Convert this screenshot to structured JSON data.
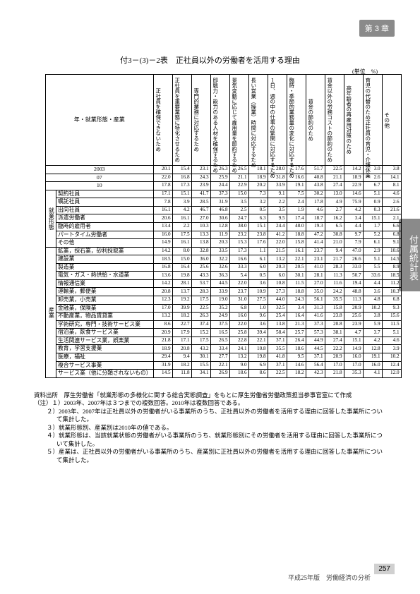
{
  "chapter_tag": "第 3 章",
  "side_tab": "付属統計表",
  "title": "付3－(3)－2表　正社員以外の労働者を活用する理由",
  "unit_label": "(単位　%)",
  "corner_head": "年・就業形態・産業",
  "col_heads": [
    "正社員を確保できないため",
    "正社員を重要業務に特化させるため",
    "専門的業務に対応するため",
    "即戦力・能力のある人材を確保するため",
    "景気変動に応じて雇用量を節約するため",
    "長い営業（操業）時間に対応するため",
    "１日、週の中の仕事の繁閑に対応するため",
    "臨時・季節的業務量の変化に対応するため",
    "賃金の節約のため",
    "賃金以外の労務コストの節約のため",
    "高年齢者の再雇用対策のため",
    "育児の代替のため正社員の育児・介護休業",
    "その他"
  ],
  "year_rows": [
    {
      "label": "2003",
      "v": [
        20.1,
        15.4,
        23.1,
        26.3,
        26.5,
        18.1,
        28.0,
        17.6,
        51.7,
        22.5,
        14.2,
        3.0,
        3.8
      ]
    },
    {
      "label": "07",
      "v": [
        22.0,
        16.8,
        24.3,
        25.9,
        21.1,
        18.9,
        31.8,
        16.6,
        40.8,
        21.1,
        18.9,
        2.6,
        14.1
      ]
    },
    {
      "label": "10",
      "v": [
        17.8,
        17.3,
        23.9,
        24.4,
        22.9,
        20.2,
        33.9,
        19.1,
        43.8,
        27.4,
        22.9,
        6.7,
        8.1
      ]
    }
  ],
  "emp_rows": [
    {
      "label": "契約社員",
      "v": [
        17.1,
        15.1,
        41.7,
        37.3,
        15.0,
        7.3,
        9.1,
        7.5,
        30.2,
        13.0,
        14.6,
        5.1,
        4.6
      ]
    },
    {
      "label": "嘱託社員",
      "v": [
        7.8,
        3.9,
        28.5,
        31.9,
        3.5,
        3.2,
        2.2,
        2.4,
        17.8,
        4.9,
        75.9,
        0.9,
        2.6
      ]
    },
    {
      "label": "出向社員",
      "v": [
        16.1,
        4.2,
        46.7,
        46.8,
        2.5,
        0.5,
        3.5,
        1.9,
        4.6,
        2.7,
        4.2,
        0.3,
        21.6
      ]
    },
    {
      "label": "派遣労働者",
      "v": [
        20.6,
        16.1,
        27.0,
        30.6,
        24.7,
        6.3,
        9.5,
        17.4,
        18.7,
        16.2,
        3.4,
        15.1,
        2.1
      ]
    },
    {
      "label": "臨時的雇用者",
      "v": [
        13.4,
        2.2,
        10.3,
        12.8,
        38.0,
        15.1,
        24.4,
        48.0,
        19.3,
        6.5,
        4.4,
        1.7,
        6.6
      ]
    },
    {
      "label": "パートタイム労働者",
      "v": [
        16.0,
        17.5,
        13.3,
        11.9,
        23.2,
        23.8,
        41.2,
        18.8,
        47.2,
        30.8,
        9.7,
        5.2,
        6.8
      ]
    },
    {
      "label": "その他",
      "v": [
        14.9,
        16.1,
        13.8,
        20.3,
        15.3,
        17.6,
        22.0,
        15.8,
        41.4,
        21.0,
        7.9,
        6.1,
        9.1
      ]
    }
  ],
  "emp_side": "就業形態",
  "ind_rows": [
    {
      "label": "鉱業，採石業，砂利採取業",
      "v": [
        14.2,
        8.0,
        32.8,
        33.5,
        17.3,
        1.1,
        21.5,
        16.1,
        23.7,
        9.4,
        47.0,
        2.9,
        10.6
      ]
    },
    {
      "label": "建設業",
      "v": [
        18.5,
        15.0,
        36.0,
        32.2,
        16.6,
        6.1,
        13.2,
        22.1,
        23.1,
        21.7,
        26.6,
        5.1,
        14.5
      ]
    },
    {
      "label": "製造業",
      "v": [
        16.8,
        16.4,
        25.6,
        32.6,
        33.3,
        6.0,
        20.3,
        20.5,
        41.0,
        28.3,
        33.0,
        5.5,
        8.9
      ]
    },
    {
      "label": "電気・ガス・熱供給・水道業",
      "v": [
        13.6,
        19.8,
        43.3,
        36.3,
        5.4,
        0.5,
        6.0,
        30.1,
        28.1,
        11.3,
        50.7,
        33.6,
        18.5
      ]
    },
    {
      "label": "情報通信業",
      "v": [
        14.2,
        28.1,
        53.7,
        44.5,
        22.0,
        3.6,
        10.8,
        11.5,
        27.0,
        11.6,
        19.4,
        4.4,
        11.2
      ]
    },
    {
      "label": "運輸業，郵便業",
      "v": [
        20.8,
        13.7,
        28.3,
        33.9,
        23.7,
        10.9,
        27.3,
        18.8,
        35.0,
        24.2,
        48.8,
        3.6,
        10.3
      ]
    },
    {
      "label": "卸売業，小売業",
      "v": [
        12.3,
        19.2,
        17.5,
        19.0,
        31.0,
        27.5,
        44.0,
        24.3,
        56.1,
        35.5,
        11.3,
        4.8,
        6.8
      ]
    },
    {
      "label": "金融業，保険業",
      "v": [
        17.0,
        39.9,
        22.5,
        35.2,
        6.8,
        1.0,
        32.5,
        3.4,
        31.3,
        15.8,
        20.9,
        10.2,
        9.3
      ]
    },
    {
      "label": "不動産業，物品賃貸業",
      "v": [
        13.2,
        18.2,
        26.3,
        24.9,
        16.0,
        9.6,
        25.4,
        16.4,
        41.6,
        23.8,
        25.6,
        3.8,
        15.6
      ]
    },
    {
      "label": "学術研究，専門・技術サービス業",
      "v": [
        8.6,
        22.7,
        37.4,
        37.5,
        22.0,
        3.6,
        13.8,
        21.3,
        37.3,
        20.8,
        23.9,
        5.9,
        11.5
      ]
    },
    {
      "label": "宿泊業，飲食サービス業",
      "v": [
        20.9,
        17.9,
        15.2,
        16.5,
        25.8,
        39.4,
        58.4,
        25.7,
        57.3,
        38.1,
        4.7,
        3.7,
        5.1
      ]
    },
    {
      "label": "生活関連サービス業，娯楽業",
      "v": [
        21.8,
        17.1,
        17.5,
        26.5,
        22.8,
        22.1,
        37.1,
        26.4,
        44.9,
        27.4,
        15.1,
        4.2,
        4.6
      ]
    },
    {
      "label": "教育，学習支援業",
      "v": [
        18.9,
        20.8,
        43.2,
        33.4,
        24.1,
        10.8,
        35.5,
        18.6,
        44.5,
        22.2,
        14.9,
        12.8,
        3.9
      ]
    },
    {
      "label": "医療，福祉",
      "v": [
        29.4,
        9.4,
        30.1,
        27.7,
        13.2,
        19.8,
        41.8,
        9.5,
        37.1,
        20.9,
        16.0,
        19.1,
        10.2
      ]
    },
    {
      "label": "複合サービス事業",
      "v": [
        31.9,
        18.2,
        15.5,
        22.1,
        9.0,
        6.9,
        37.1,
        14.6,
        56.4,
        17.0,
        17.0,
        16.0,
        12.4
      ]
    },
    {
      "label": "サービス業（他に分類されないもの）",
      "v": [
        14.5,
        11.8,
        34.1,
        26.9,
        18.6,
        8.6,
        22.5,
        18.2,
        42.3,
        21.8,
        35.3,
        4.1,
        12.0
      ]
    }
  ],
  "ind_side": "産業",
  "notes_source": "資料出所　厚生労働省「就業形態の多様化に関する総合実態調査」をもとに厚生労働省労働政策担当参事官室にて作成",
  "notes_label": "（注）",
  "notes": [
    "１）2003年、2007年は３つまでの複数回答。2010年は複数回答である。",
    "２）2003年、2007年は正社員以外の労働者がいる事業所のうち、正社員以外の労働者を活用する理由に回答した事業所について集計した。",
    "３）就業形態別、産業別は2010年の値である。",
    "４）就業形態は、当該就業状態の労働者がいる事業所のうち、就業形態別にその労働者を活用する理由に回答した事業所について集計した。",
    "５）産業は、正社員以外の労働者がいる事業所のうち、産業別に正社員以外の労働者を活用する理由に回答した事業所について集計した。"
  ],
  "footer_text": "平成25年版　労働経済の分析",
  "page_no": "257"
}
